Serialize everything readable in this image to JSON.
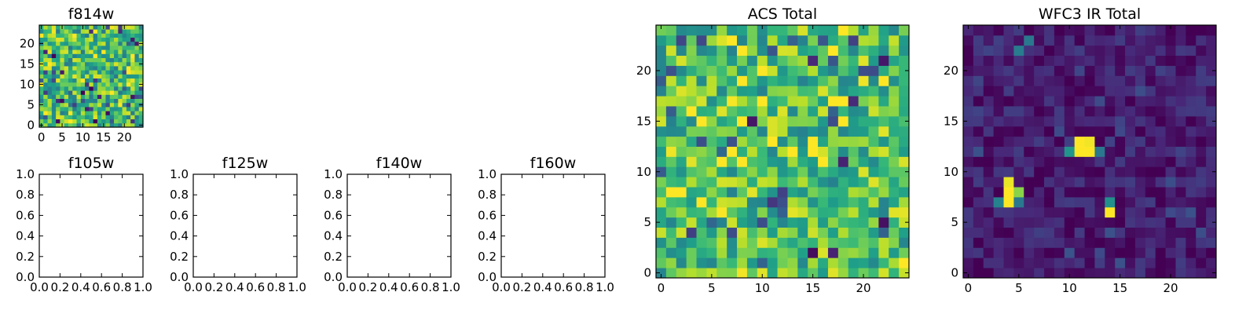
{
  "figure": "Multi-panel image grid",
  "chart_data": [
    {
      "id": "f814w",
      "type": "heatmap",
      "title": "f814w",
      "xlim": [
        -0.5,
        24.5
      ],
      "ylim": [
        -0.5,
        24.5
      ],
      "xticks": [
        0,
        5,
        10,
        15,
        20
      ],
      "yticks": [
        0,
        5,
        10,
        15,
        20
      ],
      "grid_size": [
        25,
        25
      ],
      "colormap": "viridis",
      "field": "noise",
      "seed": 814,
      "base": 0.68,
      "spread": 0.42,
      "hotspots": []
    },
    {
      "id": "f105w",
      "type": "empty",
      "title": "f105w",
      "xlim": [
        0,
        1
      ],
      "ylim": [
        0,
        1
      ],
      "xticks": [
        "0.0",
        "0.2",
        "0.4",
        "0.6",
        "0.8",
        "1.0"
      ],
      "yticks": [
        "0.0",
        "0.2",
        "0.4",
        "0.6",
        "0.8",
        "1.0"
      ]
    },
    {
      "id": "f125w",
      "type": "empty",
      "title": "f125w",
      "xlim": [
        0,
        1
      ],
      "ylim": [
        0,
        1
      ],
      "xticks": [
        "0.0",
        "0.2",
        "0.4",
        "0.6",
        "0.8",
        "1.0"
      ],
      "yticks": [
        "0.0",
        "0.2",
        "0.4",
        "0.6",
        "0.8",
        "1.0"
      ]
    },
    {
      "id": "f140w",
      "type": "empty",
      "title": "f140w",
      "xlim": [
        0,
        1
      ],
      "ylim": [
        0,
        1
      ],
      "xticks": [
        "0.0",
        "0.2",
        "0.4",
        "0.6",
        "0.8",
        "1.0"
      ],
      "yticks": [
        "0.0",
        "0.2",
        "0.4",
        "0.6",
        "0.8",
        "1.0"
      ]
    },
    {
      "id": "f160w",
      "type": "empty",
      "title": "f160w",
      "xlim": [
        0,
        1
      ],
      "ylim": [
        0,
        1
      ],
      "xticks": [
        "0.0",
        "0.2",
        "0.4",
        "0.6",
        "0.8",
        "1.0"
      ],
      "yticks": [
        "0.0",
        "0.2",
        "0.4",
        "0.6",
        "0.8",
        "1.0"
      ]
    },
    {
      "id": "acs-total",
      "type": "heatmap",
      "title": "ACS Total",
      "xlim": [
        -0.5,
        24.5
      ],
      "ylim": [
        -0.5,
        24.5
      ],
      "xticks": [
        0,
        5,
        10,
        15,
        20
      ],
      "yticks": [
        0,
        5,
        10,
        15,
        20
      ],
      "grid_size": [
        25,
        25
      ],
      "colormap": "viridis",
      "field": "noise",
      "seed": 2024,
      "base": 0.7,
      "spread": 0.4,
      "hotspots": []
    },
    {
      "id": "wfc3-ir-total",
      "type": "heatmap",
      "title": "WFC3 IR Total",
      "xlim": [
        -0.5,
        24.5
      ],
      "ylim": [
        -0.5,
        24.5
      ],
      "xticks": [
        0,
        5,
        10,
        15,
        20
      ],
      "yticks": [
        0,
        5,
        10,
        15,
        20
      ],
      "grid_size": [
        25,
        25
      ],
      "colormap": "viridis",
      "field": "noise",
      "seed": 7,
      "base": 0.09,
      "spread": 0.14,
      "hotspots": [
        {
          "x": 11,
          "y": 12,
          "v": 1.0
        },
        {
          "x": 12,
          "y": 12,
          "v": 1.0
        },
        {
          "x": 11,
          "y": 13,
          "v": 1.0
        },
        {
          "x": 12,
          "y": 13,
          "v": 0.98
        },
        {
          "x": 10,
          "y": 12,
          "v": 0.52
        },
        {
          "x": 13,
          "y": 12,
          "v": 0.4
        },
        {
          "x": 4,
          "y": 7,
          "v": 1.0
        },
        {
          "x": 4,
          "y": 8,
          "v": 1.0
        },
        {
          "x": 4,
          "y": 9,
          "v": 0.97
        },
        {
          "x": 5,
          "y": 8,
          "v": 0.82
        },
        {
          "x": 3,
          "y": 7,
          "v": 0.45
        },
        {
          "x": 5,
          "y": 7,
          "v": 0.4
        },
        {
          "x": 14,
          "y": 6,
          "v": 1.0
        },
        {
          "x": 14,
          "y": 7,
          "v": 0.5
        },
        {
          "x": 5,
          "y": 22,
          "v": 0.42
        },
        {
          "x": 6,
          "y": 23,
          "v": 0.4
        }
      ]
    }
  ]
}
